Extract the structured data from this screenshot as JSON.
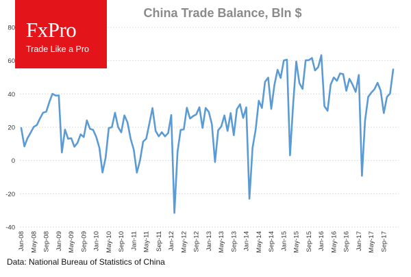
{
  "branding": {
    "logo_text": "FxPro",
    "tagline": "Trade Like a Pro",
    "logo_bg": "#e3151b"
  },
  "source": "Data: National Bureau of Statistics of China",
  "chart_data": {
    "type": "line",
    "title": "China Trade Balance, Bln $",
    "xlabel": "",
    "ylabel": "",
    "ylim": [
      -40,
      80
    ],
    "yticks": [
      -40,
      -20,
      0,
      20,
      40,
      60,
      80
    ],
    "grid": "horizontal",
    "line_color": "#5b9bd5",
    "x_start": "Jan-08",
    "x_end": "Dec-17",
    "xtick_labels": [
      "Jan-08",
      "May-08",
      "Sep-08",
      "Jan-09",
      "May-09",
      "Sep-09",
      "Jan-10",
      "May-10",
      "Sep-10",
      "Jan-11",
      "May-11",
      "Sep-11",
      "Jan-12",
      "May-12",
      "Sep-12",
      "Jan-13",
      "May-13",
      "Sep-13",
      "Jan-14",
      "May-14",
      "Sep-14",
      "Jan-15",
      "May-15",
      "Sep-15",
      "Jan-16",
      "May-16",
      "Sep-16",
      "Jan-17",
      "May-17",
      "Sep-17"
    ],
    "series": [
      {
        "name": "",
        "values": [
          19.5,
          8.5,
          13.4,
          16.7,
          20.2,
          21.3,
          25.3,
          28.7,
          29.3,
          35.2,
          40.1,
          39.0,
          39.1,
          4.8,
          18.6,
          13.1,
          13.4,
          8.3,
          10.6,
          15.7,
          14.1,
          24.1,
          19.0,
          18.4,
          14.2,
          7.6,
          -7.2,
          1.7,
          19.5,
          20.0,
          28.7,
          20.0,
          16.9,
          27.1,
          22.9,
          13.1,
          6.5,
          -7.3,
          0.1,
          11.4,
          13.1,
          22.3,
          31.5,
          17.8,
          14.5,
          17.0,
          14.5,
          16.5,
          27.3,
          -31.5,
          5.3,
          18.4,
          18.7,
          31.7,
          25.2,
          26.7,
          27.7,
          32.0,
          19.6,
          31.6,
          29.2,
          21.8,
          -0.9,
          18.2,
          20.4,
          27.1,
          17.8,
          28.5,
          15.2,
          30.8,
          33.8,
          25.6,
          31.9,
          -23.0,
          7.7,
          18.5,
          35.9,
          31.6,
          47.3,
          49.8,
          31.0,
          45.4,
          54.5,
          49.6,
          60.1,
          60.6,
          3.1,
          34.1,
          59.5,
          46.5,
          43.0,
          60.2,
          60.3,
          61.6,
          54.1,
          56.1,
          63.3,
          32.6,
          29.9,
          45.6,
          49.9,
          47.9,
          52.3,
          51.9,
          41.9,
          49.1,
          45.6,
          41.2,
          51.4,
          -9.2,
          23.9,
          38.2,
          40.8,
          42.8,
          46.7,
          42.0,
          28.5,
          38.2,
          40.2,
          54.7
        ]
      }
    ]
  }
}
